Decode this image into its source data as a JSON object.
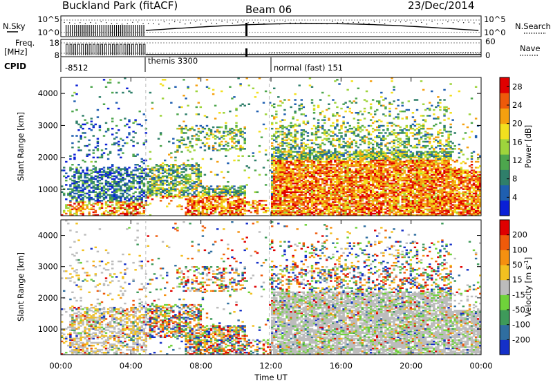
{
  "header": {
    "title": "Buckland Park (fitACF)",
    "beam": "Beam 06",
    "date": "23/Dec/2014"
  },
  "nsky_panel": {
    "left_label": "N.Sky",
    "left_ticks": [
      "10^5",
      "10^0"
    ],
    "right_ticks": [
      "10^5",
      "10^0"
    ],
    "right_label": "N.Search"
  },
  "freq_panel": {
    "left_label_top": "Freq.",
    "left_label_bottom": "[MHz]",
    "left_ticks": [
      "18",
      "8"
    ],
    "right_ticks": [
      "60",
      "0"
    ],
    "right_label": "Nave"
  },
  "cpid": {
    "label": "CPID",
    "segments": [
      {
        "text": "-8512",
        "start_hour": 0
      },
      {
        "text": "themis 3300",
        "start_hour": 4.85
      },
      {
        "text": "normal (fast) 151",
        "start_hour": 11.9
      }
    ]
  },
  "chart_data": [
    {
      "type": "heatmap",
      "quantity": "Power",
      "ylabel": "Slant Range [km]",
      "xlabel": "Time UT",
      "xlim_hours": [
        0,
        24
      ],
      "x_ticks": [
        "00:00",
        "04:00",
        "08:00",
        "12:00",
        "16:00",
        "20:00",
        "00:00"
      ],
      "ylim_km": [
        180,
        4500
      ],
      "y_ticks": [
        "1000",
        "2000",
        "3000",
        "4000"
      ],
      "colorbar": {
        "label": "Power [dB]",
        "ticks": [
          "4",
          "8",
          "12",
          "16",
          "20",
          "24",
          "28"
        ],
        "range": [
          0,
          30
        ],
        "colors": [
          "#0a1fd6",
          "#1f5fb0",
          "#2f7f6a",
          "#4da64d",
          "#9ed43c",
          "#f2e01f",
          "#f5a00f",
          "#ee5a0a",
          "#e00000"
        ]
      },
      "cpid_boundaries_hours": [
        4.85,
        11.9
      ]
    },
    {
      "type": "heatmap",
      "quantity": "Velocity",
      "ylabel": "Slant Range [km]",
      "xlabel": "Time UT",
      "xlim_hours": [
        0,
        24
      ],
      "x_ticks": [
        "00:00",
        "04:00",
        "08:00",
        "12:00",
        "16:00",
        "20:00",
        "00:00"
      ],
      "ylim_km": [
        180,
        4500
      ],
      "y_ticks": [
        "1000",
        "2000",
        "3000",
        "4000"
      ],
      "colorbar": {
        "label": "Velocity [m s^-1]",
        "ticks": [
          "200",
          "100",
          "50",
          "15",
          "-15",
          "-50",
          "-100",
          "-200"
        ],
        "range": [
          -250,
          250
        ],
        "colors": [
          "#1530c8",
          "#2f6ea0",
          "#3e9a5a",
          "#6fd23a",
          "#bcbcbc",
          "#f2c020",
          "#f59010",
          "#ef5a0a",
          "#e00000"
        ]
      },
      "cpid_boundaries_hours": [
        4.85,
        11.9
      ]
    }
  ]
}
